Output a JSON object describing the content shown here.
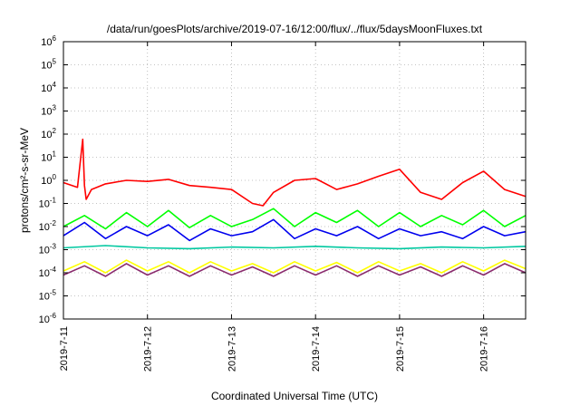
{
  "chart_data": {
    "type": "line",
    "title": "/data/run/goesPlots/archive/2019-07-16/12:00/flux/../flux/5daysMoonFluxes.txt",
    "xlabel": "Coordinated Universal Time (UTC)",
    "ylabel": "protons/cm²-s-sr-MeV",
    "yscale": "log",
    "ylim": [
      1e-06,
      1000000.0
    ],
    "y_ticks": [
      {
        "v": -6,
        "base": "10",
        "exp": "-6"
      },
      {
        "v": -5,
        "base": "10",
        "exp": "-5"
      },
      {
        "v": -4,
        "base": "10",
        "exp": "-4"
      },
      {
        "v": -3,
        "base": "10",
        "exp": "-3"
      },
      {
        "v": -2,
        "base": "10",
        "exp": "-2"
      },
      {
        "v": -1,
        "base": "10",
        "exp": "-1"
      },
      {
        "v": 0,
        "base": "10",
        "exp": "0"
      },
      {
        "v": 1,
        "base": "10",
        "exp": "1"
      },
      {
        "v": 2,
        "base": "10",
        "exp": "2"
      },
      {
        "v": 3,
        "base": "10",
        "exp": "3"
      },
      {
        "v": 4,
        "base": "10",
        "exp": "4"
      },
      {
        "v": 5,
        "base": "10",
        "exp": "5"
      },
      {
        "v": 6,
        "base": "10",
        "exp": "6"
      }
    ],
    "x_range_days": [
      "2019-07-11",
      "2019-07-16 12:00"
    ],
    "x_ticks": [
      "2019-7-11",
      "2019-7-12",
      "2019-7-13",
      "2019-7-14",
      "2019-7-15",
      "2019-7-16"
    ],
    "grid": true,
    "series": [
      {
        "color": "#ff0000",
        "x": [
          "2019-07-11 00:00",
          "2019-07-11 04:00",
          "2019-07-11 05:30",
          "2019-07-11 06:00",
          "2019-07-11 06:30",
          "2019-07-11 08:00",
          "2019-07-11 12:00",
          "2019-07-11 18:00",
          "2019-07-12 00:00",
          "2019-07-12 06:00",
          "2019-07-12 12:00",
          "2019-07-12 18:00",
          "2019-07-13 00:00",
          "2019-07-13 06:00",
          "2019-07-13 09:00",
          "2019-07-13 12:00",
          "2019-07-13 18:00",
          "2019-07-14 00:00",
          "2019-07-14 06:00",
          "2019-07-14 12:00",
          "2019-07-14 18:00",
          "2019-07-15 00:00",
          "2019-07-15 06:00",
          "2019-07-15 12:00",
          "2019-07-15 18:00",
          "2019-07-16 00:00",
          "2019-07-16 06:00",
          "2019-07-16 12:00"
        ],
        "values": [
          0.8,
          0.5,
          60,
          0.6,
          0.15,
          0.4,
          0.7,
          1.0,
          0.9,
          1.1,
          0.6,
          0.5,
          0.4,
          0.1,
          0.08,
          0.3,
          1.0,
          1.2,
          0.4,
          0.7,
          1.5,
          3.0,
          0.3,
          0.15,
          0.8,
          2.5,
          0.4,
          0.2
        ]
      },
      {
        "color": "#00ff00",
        "x": [
          "2019-07-11 00:00",
          "2019-07-11 06:00",
          "2019-07-11 12:00",
          "2019-07-11 18:00",
          "2019-07-12 00:00",
          "2019-07-12 06:00",
          "2019-07-12 12:00",
          "2019-07-12 18:00",
          "2019-07-13 00:00",
          "2019-07-13 06:00",
          "2019-07-13 12:00",
          "2019-07-13 18:00",
          "2019-07-14 00:00",
          "2019-07-14 06:00",
          "2019-07-14 12:00",
          "2019-07-14 18:00",
          "2019-07-15 00:00",
          "2019-07-15 06:00",
          "2019-07-15 12:00",
          "2019-07-15 18:00",
          "2019-07-16 00:00",
          "2019-07-16 06:00",
          "2019-07-16 12:00"
        ],
        "values": [
          0.01,
          0.03,
          0.008,
          0.04,
          0.01,
          0.05,
          0.009,
          0.03,
          0.01,
          0.02,
          0.06,
          0.01,
          0.04,
          0.015,
          0.05,
          0.01,
          0.04,
          0.01,
          0.03,
          0.012,
          0.05,
          0.01,
          0.03
        ]
      },
      {
        "color": "#0000ee",
        "x": [
          "2019-07-11 00:00",
          "2019-07-11 06:00",
          "2019-07-11 12:00",
          "2019-07-11 18:00",
          "2019-07-12 00:00",
          "2019-07-12 06:00",
          "2019-07-12 12:00",
          "2019-07-12 18:00",
          "2019-07-13 00:00",
          "2019-07-13 06:00",
          "2019-07-13 12:00",
          "2019-07-13 18:00",
          "2019-07-14 00:00",
          "2019-07-14 06:00",
          "2019-07-14 12:00",
          "2019-07-14 18:00",
          "2019-07-15 00:00",
          "2019-07-15 06:00",
          "2019-07-15 12:00",
          "2019-07-15 18:00",
          "2019-07-16 00:00",
          "2019-07-16 06:00",
          "2019-07-16 12:00"
        ],
        "values": [
          0.004,
          0.015,
          0.003,
          0.01,
          0.004,
          0.012,
          0.0025,
          0.008,
          0.004,
          0.006,
          0.02,
          0.003,
          0.008,
          0.004,
          0.01,
          0.003,
          0.008,
          0.004,
          0.006,
          0.003,
          0.01,
          0.004,
          0.006
        ]
      },
      {
        "color": "#00c8a0",
        "x": [
          "2019-07-11 00:00",
          "2019-07-11 12:00",
          "2019-07-12 00:00",
          "2019-07-12 12:00",
          "2019-07-13 00:00",
          "2019-07-13 12:00",
          "2019-07-14 00:00",
          "2019-07-14 12:00",
          "2019-07-15 00:00",
          "2019-07-15 12:00",
          "2019-07-16 00:00",
          "2019-07-16 12:00"
        ],
        "values": [
          0.0012,
          0.0015,
          0.0012,
          0.0011,
          0.0013,
          0.0012,
          0.0014,
          0.0012,
          0.0011,
          0.0013,
          0.0012,
          0.0014
        ]
      },
      {
        "color": "#ffff00",
        "x": [
          "2019-07-11 00:00",
          "2019-07-11 06:00",
          "2019-07-11 12:00",
          "2019-07-11 18:00",
          "2019-07-12 00:00",
          "2019-07-12 06:00",
          "2019-07-12 12:00",
          "2019-07-12 18:00",
          "2019-07-13 00:00",
          "2019-07-13 06:00",
          "2019-07-13 12:00",
          "2019-07-13 18:00",
          "2019-07-14 00:00",
          "2019-07-14 06:00",
          "2019-07-14 12:00",
          "2019-07-14 18:00",
          "2019-07-15 00:00",
          "2019-07-15 06:00",
          "2019-07-15 12:00",
          "2019-07-15 18:00",
          "2019-07-16 00:00",
          "2019-07-16 06:00",
          "2019-07-16 12:00"
        ],
        "values": [
          0.00012,
          0.0003,
          0.0001,
          0.00035,
          0.00012,
          0.0003,
          0.0001,
          0.0003,
          0.00012,
          0.00025,
          0.0001,
          0.0003,
          0.00012,
          0.00028,
          0.0001,
          0.0003,
          0.00012,
          0.00025,
          0.0001,
          0.0003,
          0.00012,
          0.00035,
          0.00015
        ]
      },
      {
        "color": "#8b2c6e",
        "x": [
          "2019-07-11 00:00",
          "2019-07-11 06:00",
          "2019-07-11 12:00",
          "2019-07-11 18:00",
          "2019-07-12 00:00",
          "2019-07-12 06:00",
          "2019-07-12 12:00",
          "2019-07-12 18:00",
          "2019-07-13 00:00",
          "2019-07-13 06:00",
          "2019-07-13 12:00",
          "2019-07-13 18:00",
          "2019-07-14 00:00",
          "2019-07-14 06:00",
          "2019-07-14 12:00",
          "2019-07-14 18:00",
          "2019-07-15 00:00",
          "2019-07-15 06:00",
          "2019-07-15 12:00",
          "2019-07-15 18:00",
          "2019-07-16 00:00",
          "2019-07-16 06:00",
          "2019-07-16 12:00"
        ],
        "values": [
          8e-05,
          0.0002,
          7e-05,
          0.00025,
          8e-05,
          0.0002,
          7e-05,
          0.0002,
          8e-05,
          0.00018,
          7e-05,
          0.0002,
          8e-05,
          0.0002,
          7e-05,
          0.0002,
          8e-05,
          0.00018,
          7e-05,
          0.0002,
          8e-05,
          0.00025,
          0.0001
        ]
      }
    ]
  }
}
